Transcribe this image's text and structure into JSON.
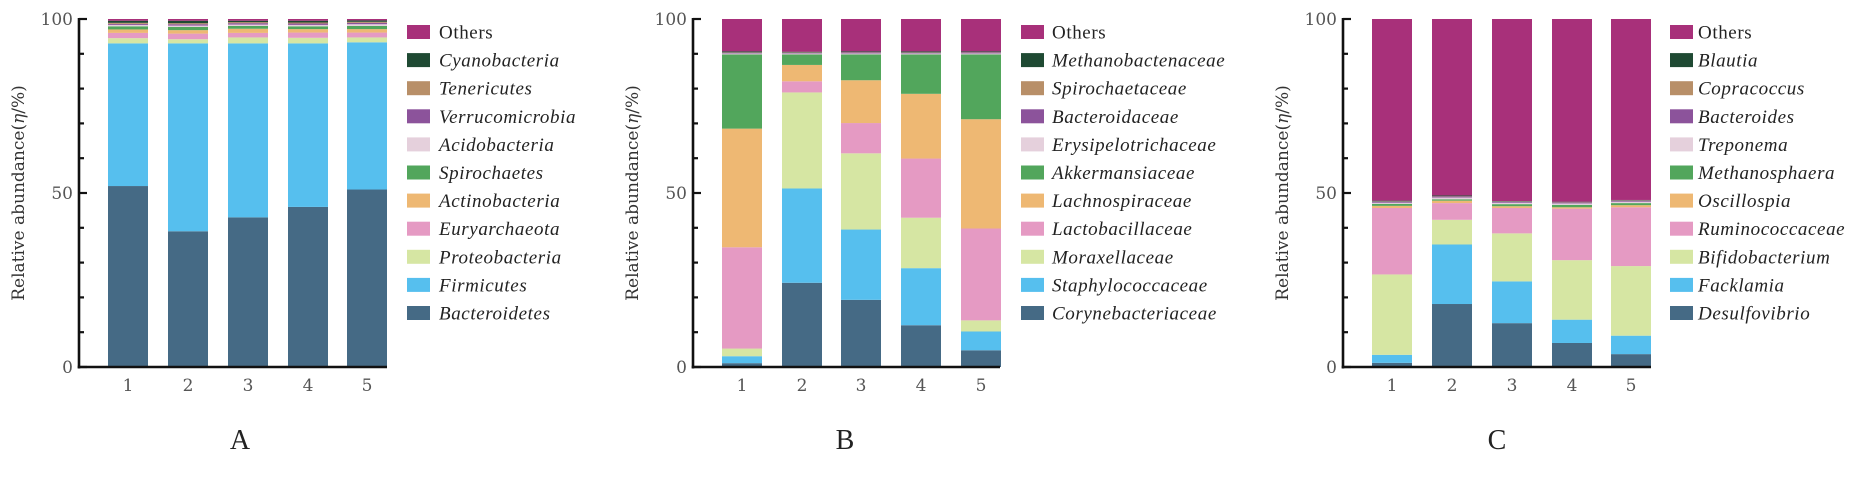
{
  "colors": {
    "Others": "#A8307A",
    "c10": "#1F4A33",
    "c9": "#B88F68",
    "c8": "#8C539B",
    "c7": "#E5D0DC",
    "c6": "#52A65C",
    "c5": "#EEB873",
    "c4": "#E59AC3",
    "c3": "#D6E6A3",
    "c2": "#56BFEE",
    "c1": "#456A85"
  },
  "chart_data": [
    {
      "type": "bar",
      "stacked": true,
      "panel_label": "A",
      "ylabel": "Relative abundance(η/%)",
      "ylabel_parts": [
        "Relative abundance(",
        "η",
        "/%)"
      ],
      "ylim": [
        0,
        100
      ],
      "yticks": [
        "0",
        "50",
        "100"
      ],
      "categories": [
        "1",
        "2",
        "3",
        "4",
        "5"
      ],
      "legend_placement": "right",
      "series": [
        {
          "name": "Bacteroidetes",
          "italic": true,
          "color_key": "c1",
          "values": [
            52.0,
            39.0,
            43.0,
            46.0,
            51.0
          ]
        },
        {
          "name": "Firmicutes",
          "italic": true,
          "color_key": "c2",
          "values": [
            41.0,
            54.0,
            50.0,
            47.0,
            42.3
          ]
        },
        {
          "name": "Proteobacteria",
          "italic": true,
          "color_key": "c3",
          "values": [
            1.5,
            1.2,
            1.7,
            1.6,
            1.4
          ]
        },
        {
          "name": "Euryarchaeota",
          "italic": true,
          "color_key": "c4",
          "values": [
            1.5,
            1.6,
            1.3,
            1.5,
            1.4
          ]
        },
        {
          "name": "Actinobacteria",
          "italic": true,
          "color_key": "c5",
          "values": [
            1.0,
            1.0,
            1.2,
            1.0,
            1.0
          ]
        },
        {
          "name": "Spirochaetes",
          "italic": true,
          "color_key": "c6",
          "values": [
            0.9,
            0.9,
            0.8,
            0.8,
            0.9
          ]
        },
        {
          "name": "Acidobacteria",
          "italic": true,
          "color_key": "c7",
          "values": [
            0.4,
            0.4,
            0.4,
            0.4,
            0.5
          ]
        },
        {
          "name": "Verrucomicrobia",
          "italic": true,
          "color_key": "c8",
          "values": [
            0.3,
            0.4,
            0.4,
            0.4,
            0.4
          ]
        },
        {
          "name": "Tenericutes",
          "italic": true,
          "color_key": "c9",
          "values": [
            0.3,
            0.3,
            0.3,
            0.3,
            0.3
          ]
        },
        {
          "name": "Cyanobacteria",
          "italic": true,
          "color_key": "c10",
          "values": [
            0.6,
            0.7,
            0.4,
            0.5,
            0.4
          ]
        },
        {
          "name": "Others",
          "italic": false,
          "color_key": "Others",
          "values": [
            0.5,
            0.5,
            0.5,
            0.5,
            0.4
          ]
        }
      ]
    },
    {
      "type": "bar",
      "stacked": true,
      "panel_label": "B",
      "ylabel": "Relative abundance(η/%)",
      "ylabel_parts": [
        "Relative abundance(",
        "η",
        "/%)"
      ],
      "ylim": [
        0,
        100
      ],
      "yticks": [
        "0",
        "50",
        "100"
      ],
      "categories": [
        "1",
        "2",
        "3",
        "4",
        "5"
      ],
      "legend_placement": "right",
      "series": [
        {
          "name": "Corynebacteriaceae",
          "italic": true,
          "color_key": "c1",
          "values": [
            1.1,
            24.2,
            19.3,
            12.0,
            4.8
          ]
        },
        {
          "name": "Staphylococcaceae",
          "italic": true,
          "color_key": "c2",
          "values": [
            2.0,
            27.1,
            20.2,
            16.4,
            5.4
          ]
        },
        {
          "name": "Moraxellaceae",
          "italic": true,
          "color_key": "c3",
          "values": [
            2.2,
            27.6,
            21.9,
            14.5,
            3.2
          ]
        },
        {
          "name": "Lactobacillaceae",
          "italic": true,
          "color_key": "c4",
          "values": [
            29.1,
            3.2,
            8.7,
            17.0,
            26.4
          ]
        },
        {
          "name": "Lachnospiraceae",
          "italic": true,
          "color_key": "c5",
          "values": [
            34.1,
            4.7,
            12.3,
            18.6,
            31.4
          ]
        },
        {
          "name": "Akkermansiaceae",
          "italic": true,
          "color_key": "c6",
          "values": [
            21.3,
            3.0,
            7.4,
            11.3,
            18.6
          ]
        },
        {
          "name": "Erysipelotrichaceae",
          "italic": true,
          "color_key": "c7",
          "values": [
            0.3,
            0.3,
            0.3,
            0.3,
            0.3
          ]
        },
        {
          "name": "Bacteroidaceae",
          "italic": true,
          "color_key": "c8",
          "values": [
            0.2,
            0.2,
            0.3,
            0.2,
            0.3
          ]
        },
        {
          "name": "Spirochaetaceae",
          "italic": true,
          "color_key": "c9",
          "values": [
            0.1,
            0.1,
            0.1,
            0.1,
            0.1
          ]
        },
        {
          "name": "Methanobactenaceae",
          "italic": true,
          "color_key": "c10",
          "values": [
            0.3,
            0.2,
            0.2,
            0.3,
            0.2
          ]
        },
        {
          "name": "Others",
          "italic": false,
          "color_key": "Others",
          "values": [
            9.3,
            9.4,
            9.3,
            9.3,
            9.3
          ]
        }
      ]
    },
    {
      "type": "bar",
      "stacked": true,
      "panel_label": "C",
      "ylabel": "Relative abundance(η/%)",
      "ylabel_parts": [
        "Relative abundance(",
        "η",
        "/%)"
      ],
      "ylim": [
        0,
        100
      ],
      "yticks": [
        "0",
        "50",
        "100"
      ],
      "categories": [
        "1",
        "2",
        "3",
        "4",
        "5"
      ],
      "legend_placement": "right",
      "series": [
        {
          "name": "Desulfovibrio",
          "italic": true,
          "color_key": "c1",
          "values": [
            1.2,
            18.1,
            12.6,
            6.9,
            3.7
          ]
        },
        {
          "name": "Facklamia",
          "italic": true,
          "color_key": "c2",
          "values": [
            2.3,
            17.1,
            12.0,
            6.7,
            5.3
          ]
        },
        {
          "name": "Bifidobacterium",
          "italic": true,
          "color_key": "c3",
          "values": [
            23.1,
            7.1,
            13.8,
            17.1,
            20.0
          ]
        },
        {
          "name": "Ruminococcaceae",
          "italic": true,
          "color_key": "c4",
          "values": [
            19.1,
            4.8,
            7.3,
            14.8,
            16.9
          ]
        },
        {
          "name": "Oscillospia",
          "italic": true,
          "color_key": "c5",
          "values": [
            0.6,
            0.7,
            0.5,
            0.4,
            0.6
          ]
        },
        {
          "name": "Methanosphaera",
          "italic": true,
          "color_key": "c6",
          "values": [
            0.6,
            0.4,
            0.6,
            0.7,
            0.6
          ]
        },
        {
          "name": "Treponema",
          "italic": true,
          "color_key": "c7",
          "values": [
            0.3,
            0.5,
            0.4,
            0.4,
            0.4
          ]
        },
        {
          "name": "Bacteroides",
          "italic": true,
          "color_key": "c8",
          "values": [
            0.3,
            0.3,
            0.3,
            0.3,
            0.3
          ]
        },
        {
          "name": "Copracoccus",
          "italic": true,
          "color_key": "c9",
          "values": [
            0.1,
            0.1,
            0.1,
            0.1,
            0.1
          ]
        },
        {
          "name": "Blautia",
          "italic": true,
          "color_key": "c10",
          "values": [
            0.2,
            0.2,
            0.1,
            0.1,
            0.1
          ]
        },
        {
          "name": "Others",
          "italic": false,
          "color_key": "Others",
          "values": [
            52.2,
            50.7,
            52.3,
            52.5,
            52.0
          ]
        }
      ]
    }
  ]
}
